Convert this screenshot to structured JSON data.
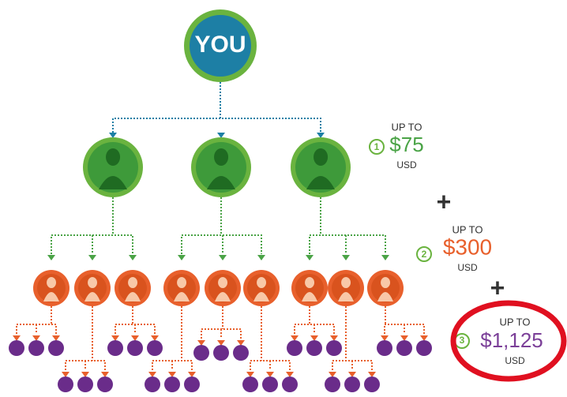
{
  "root": {
    "label": "YOU"
  },
  "payouts": [
    {
      "step": "1",
      "prefix": "UP TO",
      "amount": "$75",
      "unit": "USD"
    },
    {
      "step": "2",
      "prefix": "UP TO",
      "amount": "$300",
      "unit": "USD"
    },
    {
      "step": "3",
      "prefix": "UP TO",
      "amount": "$1,125",
      "unit": "USD"
    }
  ],
  "plus_signs": [
    "+",
    "+"
  ]
}
